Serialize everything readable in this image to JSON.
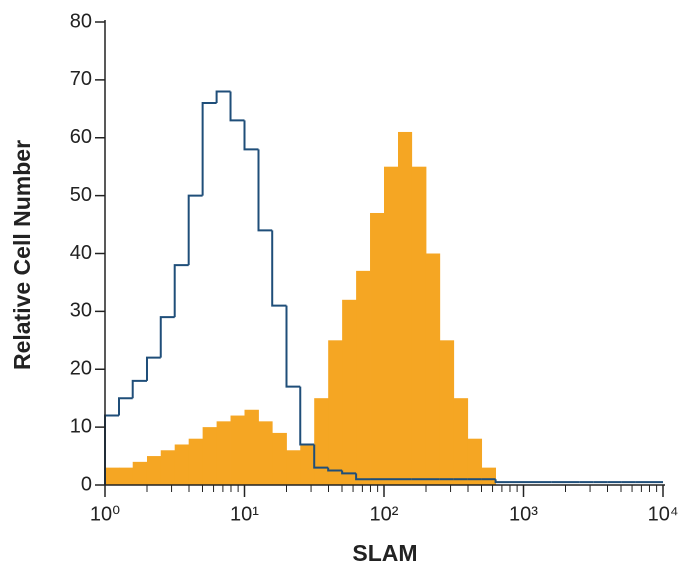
{
  "chart_data": {
    "type": "histogram",
    "x_label": "SLAM",
    "y_label": "Relative Cell Number",
    "xscale": "log",
    "minor_ticks": true,
    "bins": [
      1,
      1.26,
      1.58,
      2,
      2.51,
      3.16,
      3.98,
      5.01,
      6.31,
      7.94,
      10,
      12.6,
      15.8,
      20,
      25.1,
      31.6,
      39.8,
      50.1,
      63.1,
      79.4,
      100,
      126,
      158,
      200,
      251,
      316,
      398,
      501,
      631,
      794,
      1000,
      1260,
      1580,
      2000,
      2510,
      3160,
      3980,
      5010,
      6310,
      7940,
      10000
    ],
    "series": [
      {
        "color": "#f5a623",
        "style": "filled",
        "values": [
          3,
          3,
          4,
          5,
          6,
          7,
          8,
          10,
          11,
          12,
          13,
          11,
          9,
          6,
          7,
          15,
          25,
          32,
          37,
          47,
          55,
          61,
          55,
          40,
          25,
          15,
          8,
          3,
          0,
          0,
          0,
          0,
          0,
          0,
          0,
          0,
          0,
          0,
          0,
          0
        ]
      },
      {
        "color": "#1f4e79",
        "style": "outline",
        "values": [
          12,
          15,
          18,
          22,
          29,
          38,
          50,
          66,
          68,
          63,
          58,
          44,
          31,
          17,
          7,
          3,
          2.5,
          2,
          1,
          1,
          1,
          1,
          1,
          1,
          1,
          1,
          1,
          1,
          0.5,
          0.5,
          0.5,
          0.5,
          0.5,
          0.5,
          0.5,
          0.5,
          0.5,
          0.5,
          0.5,
          0.5
        ]
      }
    ],
    "xlim": [
      1,
      10000
    ],
    "xticks": [
      {
        "value": 1,
        "label": "10⁰"
      },
      {
        "value": 10,
        "label": "10¹"
      },
      {
        "value": 100,
        "label": "10²"
      },
      {
        "value": 1000,
        "label": "10³"
      },
      {
        "value": 10000,
        "label": "10⁴"
      }
    ],
    "ylim": [
      0,
      80
    ],
    "yticks": [
      0,
      10,
      20,
      30,
      40,
      50,
      60,
      70,
      80
    ]
  }
}
